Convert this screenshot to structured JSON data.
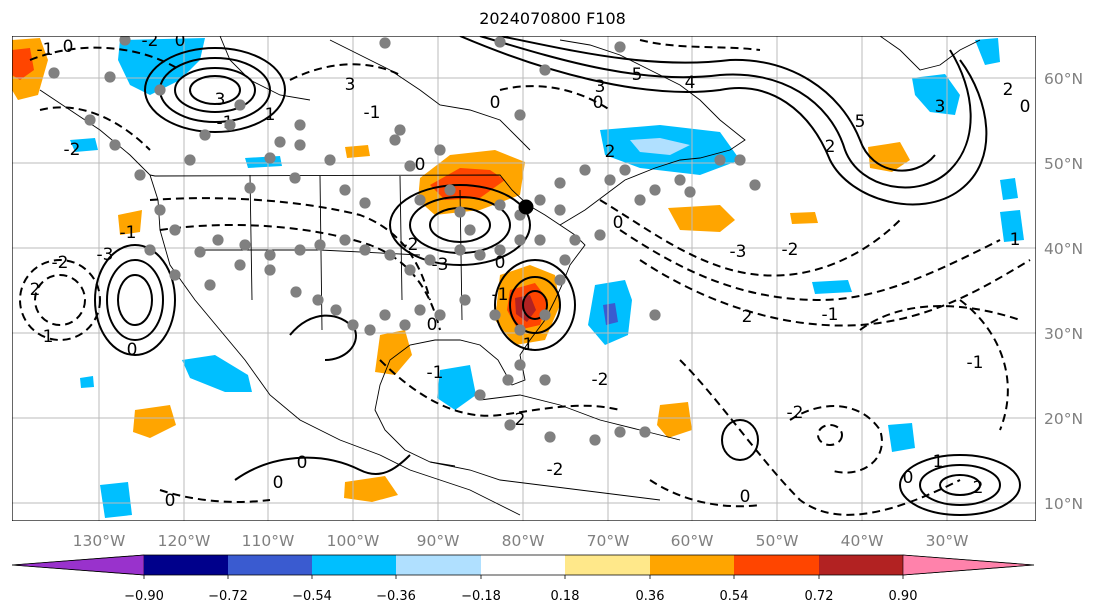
{
  "title": "2024070800 F108",
  "map": {
    "lon_labels": [
      "130°W",
      "120°W",
      "110°W",
      "100°W",
      "90°W",
      "80°W",
      "70°W",
      "60°W",
      "50°W",
      "40°W",
      "30°W"
    ],
    "lat_labels": [
      "60°N",
      "50°N",
      "40°N",
      "30°N",
      "20°N",
      "10°N"
    ],
    "contour_labels": [
      "-1",
      "0",
      "3",
      "-2",
      "2",
      "-3",
      "1",
      "-1",
      "0",
      "-2",
      "-1",
      "0",
      "3",
      "5",
      "4",
      "3",
      "5",
      "2",
      "0",
      "2",
      "-3",
      "-2",
      "2",
      "-1",
      "0",
      "-1",
      "0",
      "1",
      "0",
      "0",
      "-2",
      "-1",
      "3",
      "-2",
      "-3",
      "-1",
      "-2",
      "-2",
      "1",
      "-1",
      "0",
      "0",
      "0",
      "0",
      "-2",
      "2",
      "0",
      "2",
      "1",
      "2",
      "1",
      "0",
      "0"
    ],
    "markers": {
      "station": "#808080",
      "center": "#000000"
    }
  },
  "colorbar": {
    "ticks": [
      "−0.90",
      "−0.72",
      "−0.54",
      "−0.36",
      "−0.18",
      "0.18",
      "0.36",
      "0.54",
      "0.72",
      "0.90"
    ],
    "colors": [
      "#9932cc",
      "#00008b",
      "#3a5bd0",
      "#00bfff",
      "#b0e0ff",
      "#ffffff",
      "#ffe88a",
      "#ffa500",
      "#ff4500",
      "#b22222",
      "#ff82ab"
    ]
  }
}
